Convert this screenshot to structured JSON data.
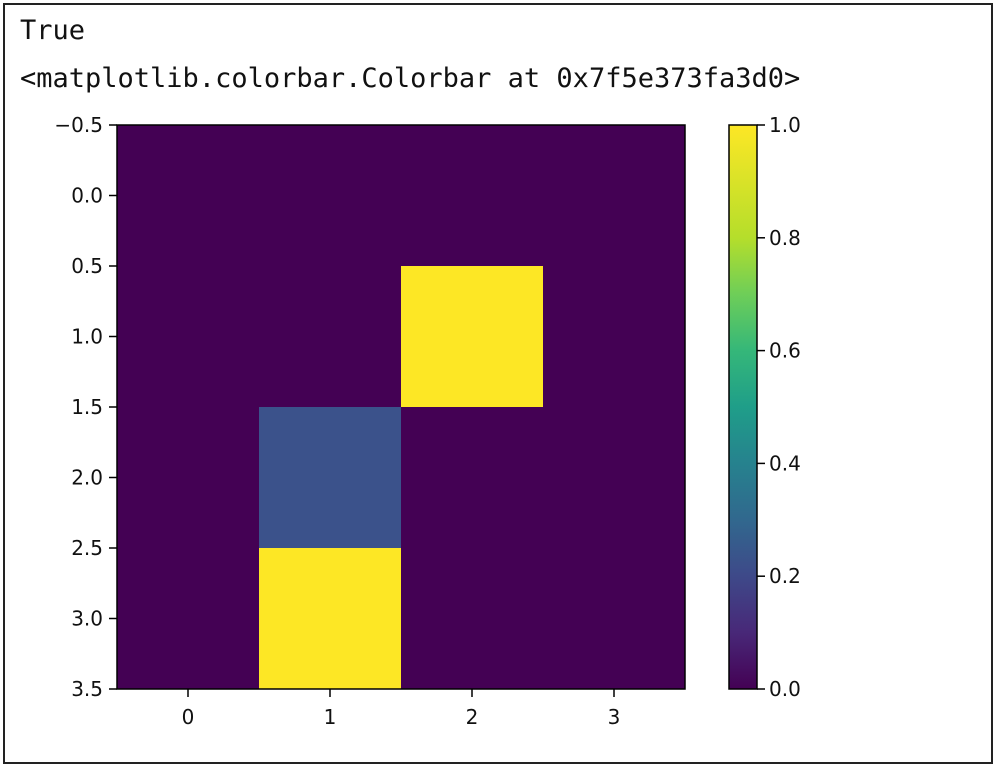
{
  "output": {
    "line1": "True",
    "line2": "<matplotlib.colorbar.Colorbar at 0x7f5e373fa3d0>"
  },
  "colors": {
    "low": "#440154",
    "mid": "#3b528b",
    "high": "#fde725",
    "axis": "#000000"
  },
  "chart_data": {
    "type": "heatmap",
    "colormap": "viridis",
    "matrix": [
      [
        0,
        0,
        0,
        0
      ],
      [
        0,
        0,
        1,
        0
      ],
      [
        0,
        0.25,
        0,
        0
      ],
      [
        0,
        1,
        0,
        0
      ]
    ],
    "xlim": [
      -0.5,
      3.5
    ],
    "ylim": [
      3.5,
      -0.5
    ],
    "x_ticks": [
      0,
      1,
      2,
      3
    ],
    "x_tick_labels": [
      "0",
      "1",
      "2",
      "3"
    ],
    "y_ticks": [
      -0.5,
      0.0,
      0.5,
      1.0,
      1.5,
      2.0,
      2.5,
      3.0,
      3.5
    ],
    "y_tick_labels": [
      "−0.5",
      "0.0",
      "0.5",
      "1.0",
      "1.5",
      "2.0",
      "2.5",
      "3.0",
      "3.5"
    ],
    "colorbar": {
      "range": [
        0.0,
        1.0
      ],
      "ticks": [
        0.0,
        0.2,
        0.4,
        0.6,
        0.8,
        1.0
      ],
      "tick_labels": [
        "0.0",
        "0.2",
        "0.4",
        "0.6",
        "0.8",
        "1.0"
      ]
    }
  }
}
